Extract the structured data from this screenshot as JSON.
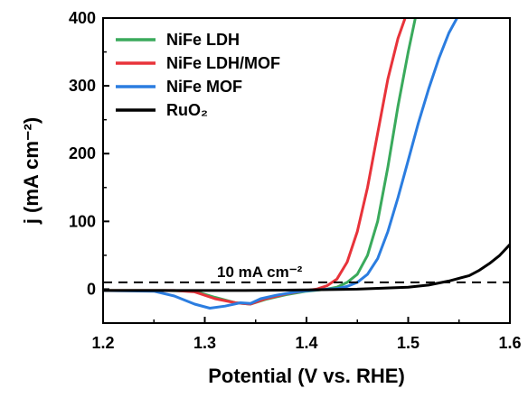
{
  "chart_data": {
    "type": "line",
    "xlabel": "Potential (V vs. RHE)",
    "ylabel": "j (mA cm⁻²)",
    "xlim": [
      1.2,
      1.6
    ],
    "ylim": [
      -50,
      400
    ],
    "x_ticks": [
      "1.2",
      "1.3",
      "1.4",
      "1.5",
      "1.6"
    ],
    "y_ticks": [
      "0",
      "100",
      "200",
      "300",
      "400"
    ],
    "legend_position": "top-left",
    "grid": false,
    "reference_line": {
      "y": 10,
      "label": "10 mA cm⁻²",
      "style": "dashed"
    },
    "series": [
      {
        "name": "NiFe LDH",
        "color": "#3aaa5c",
        "points": [
          [
            1.2,
            -2
          ],
          [
            1.26,
            -2
          ],
          [
            1.29,
            -3
          ],
          [
            1.31,
            -12
          ],
          [
            1.33,
            -20
          ],
          [
            1.345,
            -22
          ],
          [
            1.36,
            -15
          ],
          [
            1.38,
            -8
          ],
          [
            1.4,
            -3
          ],
          [
            1.42,
            0
          ],
          [
            1.43,
            3
          ],
          [
            1.44,
            10
          ],
          [
            1.45,
            22
          ],
          [
            1.46,
            50
          ],
          [
            1.47,
            100
          ],
          [
            1.48,
            180
          ],
          [
            1.49,
            270
          ],
          [
            1.5,
            350
          ],
          [
            1.507,
            400
          ]
        ]
      },
      {
        "name": "NiFe LDH/MOF",
        "color": "#e8333a",
        "points": [
          [
            1.2,
            -2
          ],
          [
            1.27,
            -2
          ],
          [
            1.29,
            -4
          ],
          [
            1.31,
            -14
          ],
          [
            1.33,
            -20
          ],
          [
            1.345,
            -22
          ],
          [
            1.36,
            -14
          ],
          [
            1.38,
            -7
          ],
          [
            1.4,
            -2
          ],
          [
            1.41,
            0
          ],
          [
            1.42,
            5
          ],
          [
            1.43,
            15
          ],
          [
            1.44,
            40
          ],
          [
            1.45,
            85
          ],
          [
            1.46,
            150
          ],
          [
            1.47,
            230
          ],
          [
            1.48,
            310
          ],
          [
            1.49,
            370
          ],
          [
            1.497,
            400
          ]
        ]
      },
      {
        "name": "NiFe MOF",
        "color": "#2b7de0",
        "points": [
          [
            1.2,
            -2
          ],
          [
            1.25,
            -3
          ],
          [
            1.27,
            -10
          ],
          [
            1.29,
            -22
          ],
          [
            1.305,
            -28
          ],
          [
            1.32,
            -25
          ],
          [
            1.335,
            -20
          ],
          [
            1.345,
            -21
          ],
          [
            1.355,
            -14
          ],
          [
            1.37,
            -9
          ],
          [
            1.39,
            -4
          ],
          [
            1.41,
            -1
          ],
          [
            1.43,
            1
          ],
          [
            1.44,
            4
          ],
          [
            1.45,
            10
          ],
          [
            1.46,
            22
          ],
          [
            1.47,
            45
          ],
          [
            1.48,
            85
          ],
          [
            1.49,
            135
          ],
          [
            1.5,
            190
          ],
          [
            1.51,
            245
          ],
          [
            1.52,
            295
          ],
          [
            1.53,
            340
          ],
          [
            1.54,
            378
          ],
          [
            1.548,
            400
          ]
        ]
      },
      {
        "name": "RuO₂",
        "color": "#000000",
        "points": [
          [
            1.2,
            -2
          ],
          [
            1.3,
            -2
          ],
          [
            1.34,
            -2
          ],
          [
            1.4,
            -1
          ],
          [
            1.45,
            0
          ],
          [
            1.5,
            3
          ],
          [
            1.52,
            6
          ],
          [
            1.54,
            12
          ],
          [
            1.56,
            20
          ],
          [
            1.57,
            28
          ],
          [
            1.58,
            38
          ],
          [
            1.59,
            50
          ],
          [
            1.6,
            66
          ]
        ]
      }
    ]
  }
}
